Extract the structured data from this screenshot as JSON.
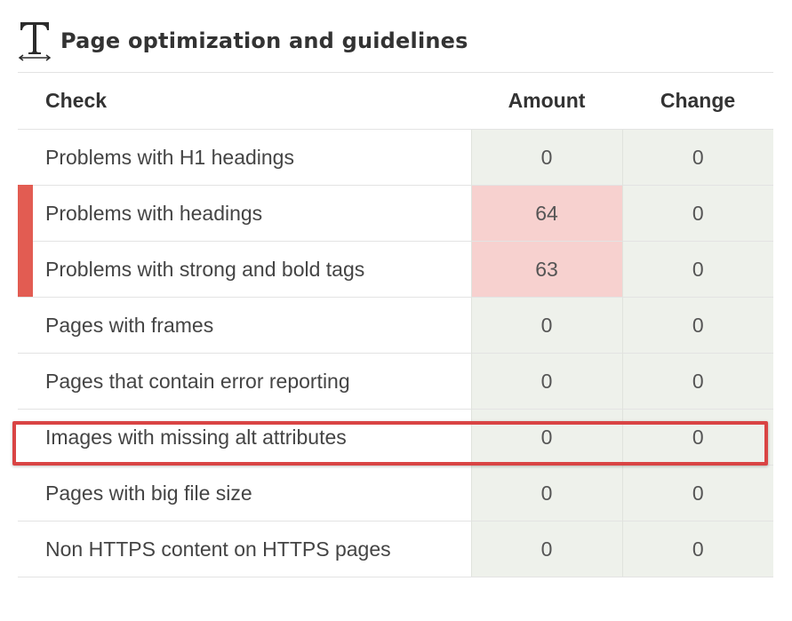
{
  "section": {
    "title": "Page optimization and guidelines",
    "icon": "text-type-icon"
  },
  "table": {
    "headers": {
      "check": "Check",
      "amount": "Amount",
      "change": "Change"
    },
    "rows": [
      {
        "check": "Problems with H1 headings",
        "amount": "0",
        "change": "0",
        "status": "ok"
      },
      {
        "check": "Problems with headings",
        "amount": "64",
        "change": "0",
        "status": "problem"
      },
      {
        "check": "Problems with strong and bold tags",
        "amount": "63",
        "change": "0",
        "status": "problem"
      },
      {
        "check": "Pages with frames",
        "amount": "0",
        "change": "0",
        "status": "ok"
      },
      {
        "check": "Pages that contain error reporting",
        "amount": "0",
        "change": "0",
        "status": "ok"
      },
      {
        "check": "Images with missing alt attributes",
        "amount": "0",
        "change": "0",
        "status": "ok",
        "highlighted": true
      },
      {
        "check": "Pages with big file size",
        "amount": "0",
        "change": "0",
        "status": "ok"
      },
      {
        "check": "Non HTTPS content on HTTPS pages",
        "amount": "0",
        "change": "0",
        "status": "ok"
      }
    ]
  },
  "colors": {
    "problem_flag": "#e25c52",
    "problem_cell": "#f7d1cf",
    "ok_cell": "#eef1eb",
    "highlight_border": "#d94444"
  }
}
